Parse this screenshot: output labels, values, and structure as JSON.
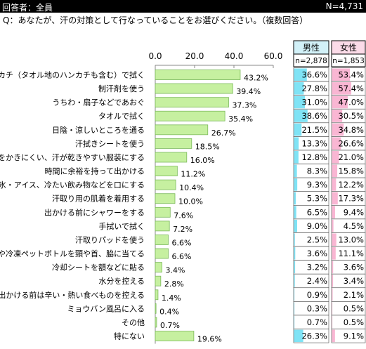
{
  "header": {
    "respondents_label": "回答者：全員",
    "n_total": "N=4,731"
  },
  "question": "Q：あなたが、汗の対策として行なっていることをお選びください。（複数回答）",
  "columns": {
    "male": {
      "label": "男性",
      "n": "n=2,878"
    },
    "female": {
      "label": "女性",
      "n": "n=1,853"
    }
  },
  "colors": {
    "bar": "#c6f0a0",
    "bar_border": "#7ab85a",
    "male_bar": "#7fe3f5",
    "female_bar": "#f9b6d3",
    "male_header": "#d2f1f8",
    "female_header": "#fbdbe8"
  },
  "chart_data": {
    "type": "bar",
    "orientation": "horizontal",
    "xlim": [
      0,
      60
    ],
    "ticks": [
      "0.0",
      "20.0",
      "40.0",
      "60.0"
    ],
    "tick_values": [
      0,
      20,
      40,
      60
    ],
    "categories": [
      "ハンカチ（タオル地のハンカチも含む）で拭く",
      "制汗剤を使う",
      "うちわ・扇子などであおぐ",
      "タオルで拭く",
      "日陰・涼しいところを通る",
      "汗拭きシートを使う",
      "汗をかきにくい、汗が乾きやすい服装にする",
      "時間に余裕を持って出かける",
      "かき氷・アイス、冷たい飲み物などを口にする",
      "汗取り用の肌着を着用する",
      "出かける前にシャワーをする",
      "手拭いで拭く",
      "汗取りパッドを使う",
      "保冷剤や冷凍ペットボトルを頸や首、脇に当てる",
      "冷却シートを額などに貼る",
      "水分を控える",
      "出かける前は辛い・熱い食べものを控える",
      "ミョウバン風呂に入る",
      "その他",
      "特にない"
    ],
    "values": [
      43.2,
      39.4,
      37.3,
      35.4,
      26.7,
      18.5,
      16.0,
      11.2,
      10.4,
      10.0,
      7.6,
      7.2,
      6.6,
      6.6,
      3.4,
      2.8,
      1.4,
      0.4,
      0.7,
      19.6
    ],
    "value_labels": [
      "43.2%",
      "39.4%",
      "37.3%",
      "35.4%",
      "26.7%",
      "18.5%",
      "16.0%",
      "11.2%",
      "10.4%",
      "10.0%",
      "7.6%",
      "7.2%",
      "6.6%",
      "6.6%",
      "3.4%",
      "2.8%",
      "1.4%",
      "0.4%",
      "0.7%",
      "19.6%"
    ],
    "male": [
      36.6,
      27.8,
      31.0,
      38.6,
      21.5,
      13.3,
      12.8,
      8.3,
      9.3,
      5.3,
      6.5,
      9.0,
      2.5,
      3.6,
      3.2,
      2.4,
      0.9,
      0.3,
      0.7,
      26.3
    ],
    "male_labels": [
      "36.6%",
      "27.8%",
      "31.0%",
      "38.6%",
      "21.5%",
      "13.3%",
      "12.8%",
      "8.3%",
      "9.3%",
      "5.3%",
      "6.5%",
      "9.0%",
      "2.5%",
      "3.6%",
      "3.2%",
      "2.4%",
      "0.9%",
      "0.3%",
      "0.7%",
      "26.3%"
    ],
    "female": [
      53.4,
      57.4,
      47.0,
      30.5,
      34.8,
      26.6,
      21.0,
      15.8,
      12.2,
      17.3,
      9.4,
      4.5,
      13.0,
      11.1,
      3.6,
      3.4,
      2.1,
      0.5,
      0.5,
      9.1
    ],
    "female_labels": [
      "53.4%",
      "57.4%",
      "47.0%",
      "30.5%",
      "34.8%",
      "26.6%",
      "21.0%",
      "15.8%",
      "12.2%",
      "17.3%",
      "9.4%",
      "4.5%",
      "13.0%",
      "11.1%",
      "3.6%",
      "3.4%",
      "2.1%",
      "0.5%",
      "0.5%",
      "9.1%"
    ]
  }
}
